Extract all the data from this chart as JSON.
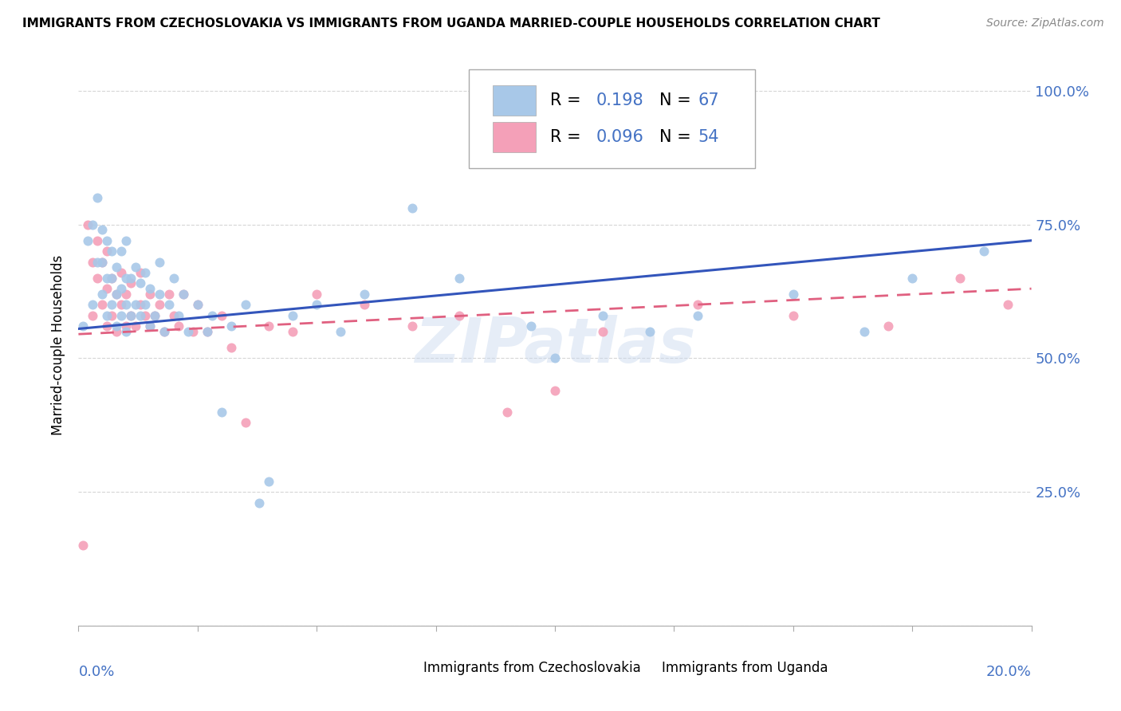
{
  "title": "IMMIGRANTS FROM CZECHOSLOVAKIA VS IMMIGRANTS FROM UGANDA MARRIED-COUPLE HOUSEHOLDS CORRELATION CHART",
  "source": "Source: ZipAtlas.com",
  "ylabel": "Married-couple Households",
  "color_czech": "#a8c8e8",
  "color_uganda": "#f4a0b8",
  "line_color_czech": "#3355bb",
  "line_color_uganda": "#e06080",
  "background_color": "#ffffff",
  "r_czech": 0.198,
  "n_czech": 67,
  "r_uganda": 0.096,
  "n_uganda": 54,
  "czech_scatter_x": [
    0.001,
    0.002,
    0.003,
    0.003,
    0.004,
    0.004,
    0.005,
    0.005,
    0.005,
    0.006,
    0.006,
    0.006,
    0.007,
    0.007,
    0.007,
    0.008,
    0.008,
    0.008,
    0.009,
    0.009,
    0.009,
    0.01,
    0.01,
    0.01,
    0.01,
    0.011,
    0.011,
    0.012,
    0.012,
    0.013,
    0.013,
    0.014,
    0.014,
    0.015,
    0.015,
    0.016,
    0.017,
    0.017,
    0.018,
    0.019,
    0.02,
    0.021,
    0.022,
    0.023,
    0.025,
    0.027,
    0.028,
    0.03,
    0.032,
    0.035,
    0.038,
    0.04,
    0.045,
    0.05,
    0.055,
    0.06,
    0.07,
    0.08,
    0.095,
    0.1,
    0.11,
    0.12,
    0.13,
    0.15,
    0.165,
    0.175,
    0.19
  ],
  "czech_scatter_y": [
    0.56,
    0.72,
    0.6,
    0.75,
    0.68,
    0.8,
    0.62,
    0.68,
    0.74,
    0.58,
    0.65,
    0.72,
    0.6,
    0.65,
    0.7,
    0.56,
    0.62,
    0.67,
    0.58,
    0.63,
    0.7,
    0.55,
    0.6,
    0.65,
    0.72,
    0.58,
    0.65,
    0.6,
    0.67,
    0.58,
    0.64,
    0.6,
    0.66,
    0.56,
    0.63,
    0.58,
    0.62,
    0.68,
    0.55,
    0.6,
    0.65,
    0.58,
    0.62,
    0.55,
    0.6,
    0.55,
    0.58,
    0.4,
    0.56,
    0.6,
    0.23,
    0.27,
    0.58,
    0.6,
    0.55,
    0.62,
    0.78,
    0.65,
    0.56,
    0.5,
    0.58,
    0.55,
    0.58,
    0.62,
    0.55,
    0.65,
    0.7
  ],
  "uganda_scatter_x": [
    0.001,
    0.002,
    0.003,
    0.003,
    0.004,
    0.004,
    0.005,
    0.005,
    0.006,
    0.006,
    0.006,
    0.007,
    0.007,
    0.008,
    0.008,
    0.009,
    0.009,
    0.01,
    0.01,
    0.011,
    0.011,
    0.012,
    0.013,
    0.013,
    0.014,
    0.015,
    0.015,
    0.016,
    0.017,
    0.018,
    0.019,
    0.02,
    0.021,
    0.022,
    0.024,
    0.025,
    0.027,
    0.03,
    0.032,
    0.035,
    0.04,
    0.045,
    0.05,
    0.06,
    0.07,
    0.08,
    0.09,
    0.1,
    0.11,
    0.13,
    0.15,
    0.17,
    0.185,
    0.195
  ],
  "uganda_scatter_y": [
    0.15,
    0.75,
    0.68,
    0.58,
    0.65,
    0.72,
    0.6,
    0.68,
    0.56,
    0.63,
    0.7,
    0.58,
    0.65,
    0.55,
    0.62,
    0.6,
    0.66,
    0.56,
    0.62,
    0.58,
    0.64,
    0.56,
    0.6,
    0.66,
    0.58,
    0.62,
    0.56,
    0.58,
    0.6,
    0.55,
    0.62,
    0.58,
    0.56,
    0.62,
    0.55,
    0.6,
    0.55,
    0.58,
    0.52,
    0.38,
    0.56,
    0.55,
    0.62,
    0.6,
    0.56,
    0.58,
    0.4,
    0.44,
    0.55,
    0.6,
    0.58,
    0.56,
    0.65,
    0.6
  ],
  "xlim": [
    0,
    0.2
  ],
  "ylim": [
    0,
    1.05
  ],
  "ytick_vals": [
    0.0,
    0.25,
    0.5,
    0.75,
    1.0
  ],
  "ytick_labels": [
    "",
    "25.0%",
    "50.0%",
    "75.0%",
    "100.0%"
  ],
  "xtick_vals": [
    0.0,
    0.025,
    0.05,
    0.075,
    0.1,
    0.125,
    0.15,
    0.175,
    0.2
  ],
  "czech_line_x0": 0.0,
  "czech_line_x1": 0.2,
  "czech_line_y0": 0.555,
  "czech_line_y1": 0.72,
  "uganda_line_x0": 0.0,
  "uganda_line_x1": 0.2,
  "uganda_line_y0": 0.545,
  "uganda_line_y1": 0.63
}
